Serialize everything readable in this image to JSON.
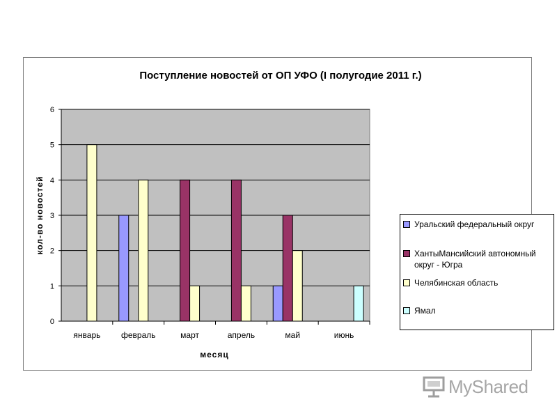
{
  "chart_data": {
    "type": "bar",
    "title": "Поступление новостей от ОП УФО (I полугодие 2011 г.)",
    "xlabel": "месяц",
    "ylabel": "кол-во новостей",
    "ylim": [
      0,
      6
    ],
    "yticks": [
      "0",
      "1",
      "2",
      "3",
      "4",
      "5",
      "6"
    ],
    "grid": true,
    "legend_position": "right",
    "categories": [
      "январь",
      "февраль",
      "март",
      "апрель",
      "май",
      "июнь"
    ],
    "series": [
      {
        "name": "Уральский федеральный округ",
        "color": "#9999ff",
        "values": [
          0,
          3,
          0,
          0,
          1,
          0
        ]
      },
      {
        "name": "Ханты-Мансийский автономный округ - Югра",
        "color": "#993366",
        "values": [
          0,
          0,
          4,
          4,
          3,
          0
        ]
      },
      {
        "name": "Челябинская область",
        "color": "#ffffcc",
        "values": [
          5,
          4,
          1,
          1,
          2,
          0
        ]
      },
      {
        "name": "Ямал",
        "color": "#ccffff",
        "values": [
          0,
          0,
          0,
          0,
          0,
          1
        ]
      }
    ],
    "plot_background": "#c0c0c0"
  },
  "legend": {
    "items": [
      {
        "label": "Уральский федеральный округ",
        "color": "#9999ff"
      },
      {
        "label": "ХантыМансийский автономный округ - Югра",
        "color": "#993366"
      },
      {
        "label": "Челябинская область",
        "color": "#ffffcc"
      },
      {
        "label": "Ямал",
        "color": "#ccffff"
      }
    ]
  },
  "watermark": {
    "text": "MyShared",
    "icon": "presentation-board-icon"
  }
}
